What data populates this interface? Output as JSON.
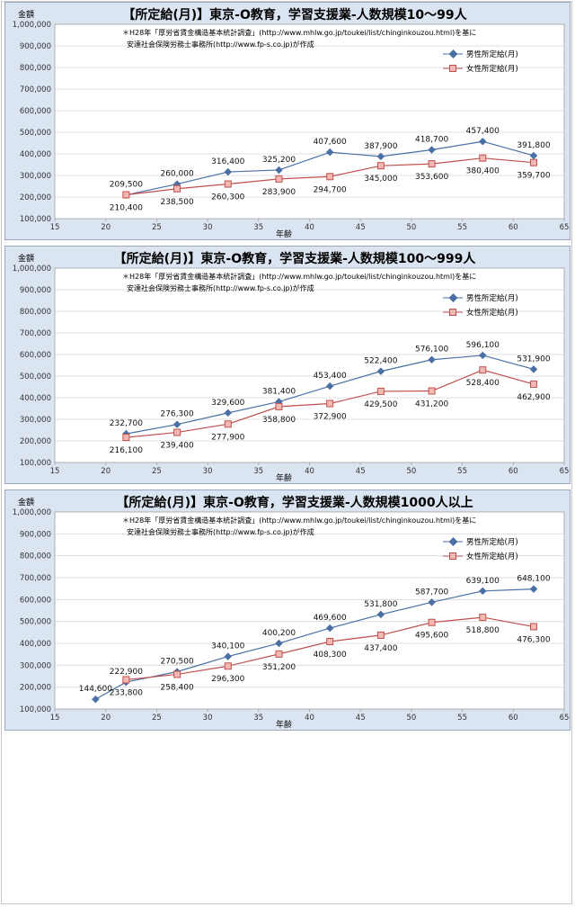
{
  "colors": {
    "male": "#4a6fa5",
    "female": "#c0504d",
    "female_fill": "#f2b8b3",
    "panel_bg": "#dbe5f1",
    "plot_bg": "#ffffff",
    "grid": "#d9d9d9"
  },
  "chart_data": [
    {
      "type": "line",
      "title": "【所定給(月)】東京-O教育，学習支援業-人数規模10～99人",
      "note_line1": "＊H28年「厚労省賃金構造基本統計調査」(http://www.mhlw.go.jp/toukei/list/chinginkouzou.html)を基に",
      "note_line2": "安達社会保険労務士事務所(http://www.fp-s.co.jp)が作成",
      "ylabel": "金額",
      "xlabel": "年齢",
      "xlim": [
        15,
        65
      ],
      "ylim": [
        100000,
        1000000
      ],
      "x_ticks": [
        "15",
        "20",
        "25",
        "30",
        "35",
        "40",
        "45",
        "50",
        "55",
        "60",
        "65"
      ],
      "y_ticks": [
        "100,000",
        "200,000",
        "300,000",
        "400,000",
        "500,000",
        "600,000",
        "700,000",
        "800,000",
        "900,000",
        "1,000,000"
      ],
      "legend_position": "top-right",
      "series": [
        {
          "name": "男性所定給(月)",
          "x": [
            22,
            27,
            32,
            37,
            42,
            47,
            52,
            57,
            62
          ],
          "values": [
            209500,
            260000,
            316400,
            325200,
            407600,
            387900,
            418700,
            457400,
            391800
          ],
          "labels": [
            "209,500",
            "260,000",
            "316,400",
            "325,200",
            "407,600",
            "387,900",
            "418,700",
            "457,400",
            "391,800"
          ]
        },
        {
          "name": "女性所定給(月)",
          "x": [
            22,
            27,
            32,
            37,
            42,
            47,
            52,
            57,
            62
          ],
          "values": [
            210400,
            238500,
            260300,
            283900,
            294700,
            345000,
            353600,
            380400,
            359700
          ],
          "labels": [
            "210,400",
            "238,500",
            "260,300",
            "283,900",
            "294,700",
            "345,000",
            "353,600",
            "380,400",
            "359,700"
          ]
        }
      ]
    },
    {
      "type": "line",
      "title": "【所定給(月)】東京-O教育，学習支援業-人数規模100～999人",
      "note_line1": "＊H28年「厚労省賃金構造基本統計調査」(http://www.mhlw.go.jp/toukei/list/chinginkouzou.html)を基に",
      "note_line2": "安達社会保険労務士事務所(http://www.fp-s.co.jp)が作成",
      "ylabel": "金額",
      "xlabel": "年齢",
      "xlim": [
        15,
        65
      ],
      "ylim": [
        100000,
        1000000
      ],
      "x_ticks": [
        "15",
        "20",
        "25",
        "30",
        "35",
        "40",
        "45",
        "50",
        "55",
        "60",
        "65"
      ],
      "y_ticks": [
        "100,000",
        "200,000",
        "300,000",
        "400,000",
        "500,000",
        "600,000",
        "700,000",
        "800,000",
        "900,000",
        "1,000,000"
      ],
      "legend_position": "top-right",
      "series": [
        {
          "name": "男性所定給(月)",
          "x": [
            22,
            27,
            32,
            37,
            42,
            47,
            52,
            57,
            62
          ],
          "values": [
            232700,
            276300,
            329600,
            381400,
            453400,
            522400,
            576100,
            596100,
            531900
          ],
          "labels": [
            "232,700",
            "276,300",
            "329,600",
            "381,400",
            "453,400",
            "522,400",
            "576,100",
            "596,100",
            "531,900"
          ]
        },
        {
          "name": "女性所定給(月)",
          "x": [
            22,
            27,
            32,
            37,
            42,
            47,
            52,
            57,
            62
          ],
          "values": [
            216100,
            239400,
            277900,
            358800,
            372900,
            429500,
            431200,
            528400,
            462900
          ],
          "labels": [
            "216,100",
            "239,400",
            "277,900",
            "358,800",
            "372,900",
            "429,500",
            "431,200",
            "528,400",
            "462,900"
          ]
        }
      ]
    },
    {
      "type": "line",
      "title": "【所定給(月)】東京-O教育，学習支援業-人数規模1000人以上",
      "note_line1": "＊H28年「厚労省賃金構造基本統計調査」(http://www.mhlw.go.jp/toukei/list/chinginkouzou.html)を基に",
      "note_line2": "安達社会保険労務士事務所(http://www.fp-s.co.jp)が作成",
      "ylabel": "金額",
      "xlabel": "年齢",
      "xlim": [
        15,
        65
      ],
      "ylim": [
        100000,
        1000000
      ],
      "x_ticks": [
        "15",
        "20",
        "25",
        "30",
        "35",
        "40",
        "45",
        "50",
        "55",
        "60",
        "65"
      ],
      "y_ticks": [
        "100,000",
        "200,000",
        "300,000",
        "400,000",
        "500,000",
        "600,000",
        "700,000",
        "800,000",
        "900,000",
        "1,000,000"
      ],
      "legend_position": "top-right",
      "series": [
        {
          "name": "男性所定給(月)",
          "x": [
            19,
            22,
            27,
            32,
            37,
            42,
            47,
            52,
            57,
            62
          ],
          "values": [
            144600,
            222900,
            270500,
            340100,
            400200,
            469600,
            531800,
            587700,
            639100,
            648100
          ],
          "labels": [
            "144,600",
            "222,900",
            "270,500",
            "340,100",
            "400,200",
            "469,600",
            "531,800",
            "587,700",
            "639,100",
            "648,100"
          ]
        },
        {
          "name": "女性所定給(月)",
          "x": [
            22,
            27,
            32,
            37,
            42,
            47,
            52,
            57,
            62
          ],
          "values": [
            233800,
            258400,
            296300,
            351200,
            408300,
            437400,
            495600,
            518800,
            476300
          ],
          "labels": [
            "233,800",
            "258,400",
            "296,300",
            "351,200",
            "408,300",
            "437,400",
            "495,600",
            "518,800",
            "476,300"
          ]
        }
      ]
    }
  ]
}
